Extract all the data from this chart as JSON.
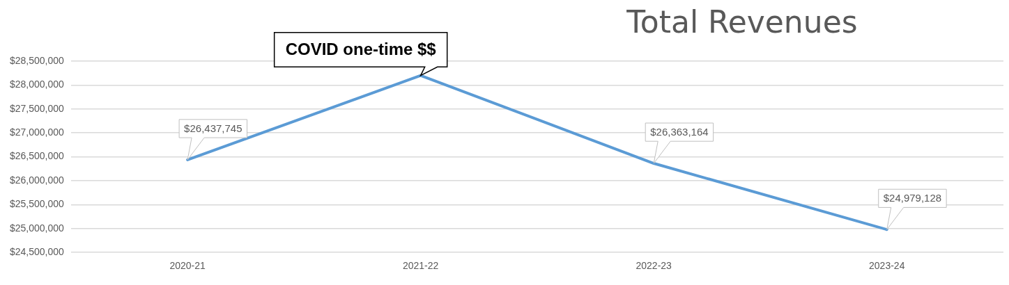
{
  "chart_data": {
    "type": "line",
    "title": "Total Revenues",
    "categories": [
      "2020-21",
      "2021-22",
      "2022-23",
      "2023-24"
    ],
    "series": [
      {
        "color": "#5b9bd5",
        "values": [
          26437745,
          28200000,
          26363164,
          24979128
        ],
        "value_labels": [
          "$26,437,745",
          null,
          "$26,363,164",
          "$24,979,128"
        ]
      }
    ],
    "ylim": [
      24500000,
      28500000
    ],
    "yticks": [
      {
        "value": 24500000,
        "label": "$24,500,000"
      },
      {
        "value": 25000000,
        "label": "$25,000,000"
      },
      {
        "value": 25500000,
        "label": "$25,500,000"
      },
      {
        "value": 26000000,
        "label": "$26,000,000"
      },
      {
        "value": 26500000,
        "label": "$26,500,000"
      },
      {
        "value": 27000000,
        "label": "$27,000,000"
      },
      {
        "value": 27500000,
        "label": "$27,500,000"
      },
      {
        "value": 28000000,
        "label": "$28,000,000"
      },
      {
        "value": 28500000,
        "label": "$28,500,000"
      }
    ],
    "annotations": [
      {
        "text": "COVID one-time $$",
        "x": "2021-22",
        "y": 28200000
      }
    ],
    "grid": "y",
    "legend": false,
    "marker": "none",
    "line_style": "solid"
  }
}
